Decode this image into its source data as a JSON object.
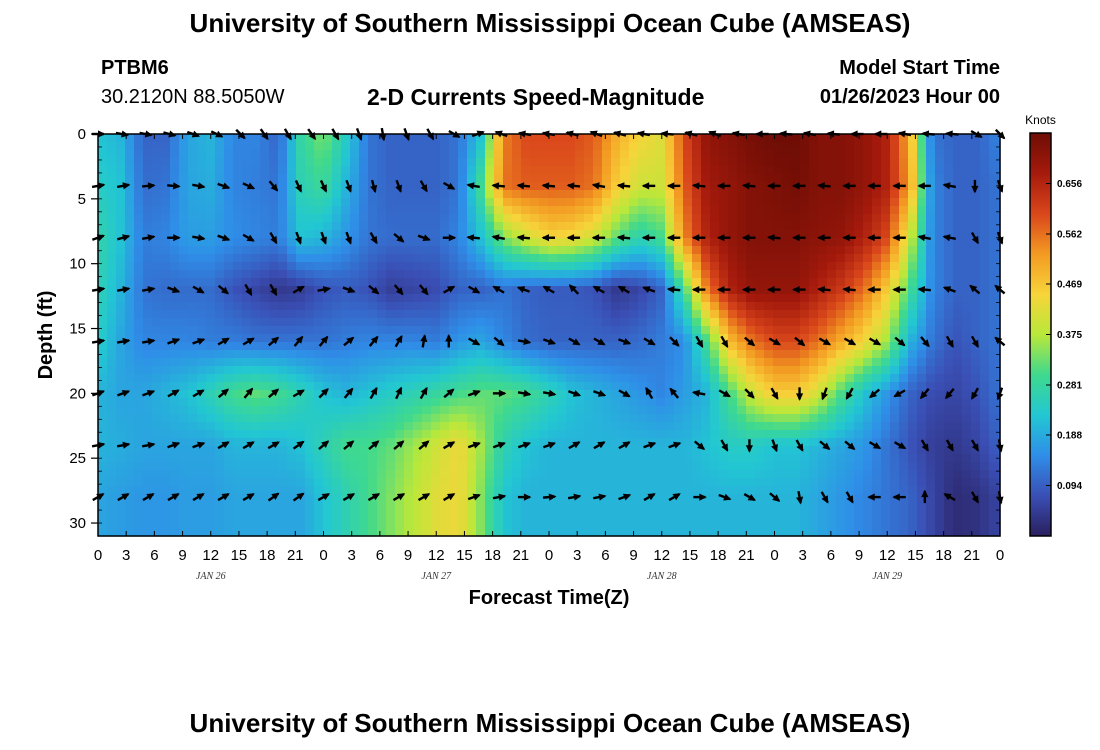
{
  "header": {
    "title": "University of Southern Mississippi Ocean Cube (AMSEAS)",
    "station": "PTBM6",
    "coords": "30.2120N  88.5050W",
    "subtitle": "2-D Currents Speed-Magnitude",
    "model_start_label": "Model Start Time",
    "model_start_value": "01/26/2023 Hour 00"
  },
  "footer": {
    "title": "University of Southern Mississippi Ocean Cube (AMSEAS)"
  },
  "colors": {
    "palette": [
      "#2a1f5e",
      "#3a4fb5",
      "#2f8ee8",
      "#22c7d2",
      "#3fd98e",
      "#b9e83a",
      "#f7d43a",
      "#f39a22",
      "#d9461b",
      "#a51a0c",
      "#6e0d05"
    ],
    "arrow": "#000000",
    "frame": "#000000"
  },
  "chart_data": {
    "type": "heatmap",
    "title": "2-D Currents Speed-Magnitude",
    "xlabel": "Forecast Time(Z)",
    "ylabel": "Depth (ft)",
    "x_tick_labels": [
      "0",
      "3",
      "6",
      "9",
      "12",
      "15",
      "18",
      "21",
      "0",
      "3",
      "6",
      "9",
      "12",
      "15",
      "18",
      "21",
      "0",
      "3",
      "6",
      "9",
      "12",
      "15",
      "18",
      "21",
      "0",
      "3",
      "6",
      "9",
      "12",
      "15",
      "18",
      "21",
      "0"
    ],
    "x_range_hours": [
      0,
      96
    ],
    "day_labels": [
      {
        "label": "JAN 26",
        "hour": 12
      },
      {
        "label": "JAN 27",
        "hour": 36
      },
      {
        "label": "JAN 28",
        "hour": 60
      },
      {
        "label": "JAN 29",
        "hour": 84
      }
    ],
    "y_ticks": [
      0,
      5,
      10,
      15,
      20,
      25,
      30
    ],
    "y_range": [
      0,
      31
    ],
    "colorbar": {
      "unit": "Knots",
      "range": [
        0,
        0.75
      ],
      "tick_values": [
        0.094,
        0.188,
        0.281,
        0.375,
        0.469,
        0.562,
        0.656
      ],
      "tick_labels": [
        "0.094",
        "0.188",
        "0.281",
        "0.375",
        "0.469",
        "0.562",
        "0.656"
      ]
    },
    "depths": [
      0,
      4,
      8,
      12,
      16,
      20,
      24,
      28
    ],
    "speed_knots": [
      [
        0.22,
        0.2,
        0.1,
        0.1,
        0.18,
        0.2,
        0.14,
        0.14,
        0.1,
        0.28,
        0.34,
        0.24,
        0.12,
        0.1,
        0.1,
        0.1,
        0.12,
        0.22,
        0.55,
        0.6,
        0.6,
        0.6,
        0.58,
        0.5,
        0.45,
        0.42,
        0.6,
        0.7,
        0.72,
        0.74,
        0.75,
        0.75,
        0.72,
        0.72,
        0.7,
        0.66,
        0.5,
        0.12,
        0.1,
        0.1,
        0.14
      ],
      [
        0.24,
        0.22,
        0.11,
        0.12,
        0.18,
        0.19,
        0.14,
        0.13,
        0.12,
        0.26,
        0.29,
        0.2,
        0.12,
        0.1,
        0.1,
        0.1,
        0.12,
        0.3,
        0.56,
        0.58,
        0.58,
        0.58,
        0.56,
        0.46,
        0.4,
        0.4,
        0.58,
        0.68,
        0.7,
        0.72,
        0.73,
        0.74,
        0.72,
        0.72,
        0.7,
        0.66,
        0.52,
        0.14,
        0.1,
        0.1,
        0.12
      ],
      [
        0.27,
        0.22,
        0.13,
        0.14,
        0.17,
        0.17,
        0.15,
        0.14,
        0.13,
        0.22,
        0.2,
        0.16,
        0.12,
        0.11,
        0.11,
        0.11,
        0.14,
        0.22,
        0.34,
        0.4,
        0.45,
        0.44,
        0.4,
        0.32,
        0.26,
        0.3,
        0.54,
        0.66,
        0.7,
        0.72,
        0.72,
        0.72,
        0.71,
        0.7,
        0.66,
        0.6,
        0.4,
        0.14,
        0.1,
        0.1,
        0.12
      ],
      [
        0.26,
        0.2,
        0.12,
        0.11,
        0.11,
        0.11,
        0.08,
        0.06,
        0.04,
        0.05,
        0.08,
        0.09,
        0.08,
        0.05,
        0.06,
        0.07,
        0.1,
        0.1,
        0.12,
        0.1,
        0.09,
        0.09,
        0.08,
        0.04,
        0.06,
        0.1,
        0.3,
        0.55,
        0.66,
        0.7,
        0.7,
        0.7,
        0.66,
        0.62,
        0.56,
        0.46,
        0.3,
        0.14,
        0.1,
        0.1,
        0.12
      ],
      [
        0.24,
        0.18,
        0.14,
        0.14,
        0.14,
        0.13,
        0.13,
        0.12,
        0.12,
        0.12,
        0.12,
        0.13,
        0.14,
        0.14,
        0.14,
        0.13,
        0.16,
        0.18,
        0.14,
        0.11,
        0.1,
        0.1,
        0.1,
        0.1,
        0.11,
        0.13,
        0.15,
        0.3,
        0.48,
        0.56,
        0.6,
        0.6,
        0.56,
        0.5,
        0.44,
        0.36,
        0.2,
        0.12,
        0.08,
        0.1,
        0.12
      ],
      [
        0.2,
        0.18,
        0.18,
        0.2,
        0.22,
        0.26,
        0.3,
        0.32,
        0.3,
        0.26,
        0.22,
        0.2,
        0.22,
        0.24,
        0.26,
        0.28,
        0.3,
        0.32,
        0.32,
        0.3,
        0.26,
        0.22,
        0.2,
        0.18,
        0.16,
        0.14,
        0.17,
        0.2,
        0.3,
        0.4,
        0.46,
        0.46,
        0.4,
        0.3,
        0.22,
        0.16,
        0.1,
        0.07,
        0.06,
        0.08,
        0.12
      ],
      [
        0.2,
        0.19,
        0.18,
        0.18,
        0.18,
        0.18,
        0.2,
        0.2,
        0.2,
        0.22,
        0.26,
        0.3,
        0.3,
        0.32,
        0.36,
        0.4,
        0.44,
        0.36,
        0.26,
        0.22,
        0.2,
        0.2,
        0.2,
        0.2,
        0.2,
        0.2,
        0.2,
        0.22,
        0.24,
        0.24,
        0.22,
        0.22,
        0.2,
        0.18,
        0.16,
        0.12,
        0.08,
        0.05,
        0.04,
        0.06,
        0.1
      ],
      [
        0.18,
        0.17,
        0.16,
        0.16,
        0.17,
        0.17,
        0.18,
        0.18,
        0.18,
        0.18,
        0.22,
        0.26,
        0.3,
        0.34,
        0.38,
        0.42,
        0.44,
        0.34,
        0.22,
        0.2,
        0.2,
        0.2,
        0.2,
        0.2,
        0.2,
        0.2,
        0.2,
        0.2,
        0.2,
        0.2,
        0.2,
        0.2,
        0.18,
        0.16,
        0.14,
        0.12,
        0.1,
        0.06,
        0.02,
        0.03,
        0.06
      ]
    ],
    "direction_deg_math": [
      [
        0,
        -10,
        -10,
        -15,
        -20,
        -25,
        -45,
        -55,
        -60,
        -55,
        -60,
        -70,
        -80,
        -70,
        -60,
        -30,
        20,
        160,
        170,
        170,
        165,
        160,
        165,
        170,
        175,
        165,
        160,
        170,
        180,
        175,
        170,
        175,
        180,
        180,
        170,
        175,
        175,
        -30,
        -45
      ],
      [
        10,
        10,
        5,
        -5,
        -10,
        -20,
        -25,
        -50,
        -65,
        -65,
        -70,
        -75,
        -70,
        -60,
        -30,
        170,
        175,
        175,
        175,
        175,
        170,
        175,
        180,
        180,
        175,
        180,
        175,
        180,
        180,
        175,
        180,
        180,
        180,
        180,
        170,
        -90,
        -70
      ],
      [
        20,
        15,
        10,
        0,
        -10,
        -20,
        -30,
        -60,
        -70,
        -70,
        -70,
        -60,
        -40,
        -20,
        0,
        175,
        170,
        175,
        180,
        180,
        180,
        175,
        180,
        180,
        180,
        180,
        180,
        175,
        180,
        180,
        180,
        180,
        180,
        170,
        170,
        -60,
        -70
      ],
      [
        10,
        10,
        10,
        -20,
        -30,
        -40,
        -60,
        -60,
        30,
        10,
        -20,
        -40,
        -50,
        -50,
        30,
        -30,
        150,
        160,
        150,
        135,
        150,
        150,
        160,
        175,
        180,
        180,
        180,
        180,
        180,
        175,
        175,
        180,
        180,
        175,
        160,
        140,
        140
      ],
      [
        10,
        10,
        10,
        20,
        20,
        30,
        30,
        40,
        50,
        50,
        40,
        50,
        60,
        80,
        90,
        -30,
        -40,
        -10,
        -20,
        -30,
        -30,
        -20,
        -30,
        -45,
        -60,
        -60,
        -40,
        -30,
        -40,
        -30,
        -30,
        -30,
        -40,
        -50,
        -60,
        -60,
        140
      ],
      [
        20,
        20,
        20,
        30,
        30,
        40,
        50,
        40,
        30,
        45,
        50,
        60,
        65,
        60,
        40,
        20,
        0,
        -10,
        -10,
        -20,
        -20,
        -30,
        120,
        130,
        170,
        -30,
        -45,
        -60,
        -90,
        -110,
        -120,
        -140,
        -150,
        -130,
        -130,
        -120,
        -110
      ],
      [
        10,
        10,
        10,
        20,
        20,
        30,
        30,
        30,
        35,
        40,
        40,
        40,
        40,
        40,
        30,
        20,
        20,
        20,
        20,
        30,
        30,
        30,
        20,
        20,
        -40,
        -60,
        -90,
        -70,
        -60,
        -40,
        -40,
        -30,
        -30,
        -60,
        -60,
        -60,
        -80
      ],
      [
        30,
        30,
        30,
        30,
        30,
        30,
        30,
        35,
        35,
        30,
        30,
        30,
        30,
        30,
        30,
        20,
        10,
        0,
        5,
        10,
        10,
        20,
        30,
        30,
        0,
        -20,
        -30,
        -40,
        -80,
        -60,
        -60,
        180,
        180,
        90,
        150,
        -60,
        -80
      ]
    ]
  }
}
